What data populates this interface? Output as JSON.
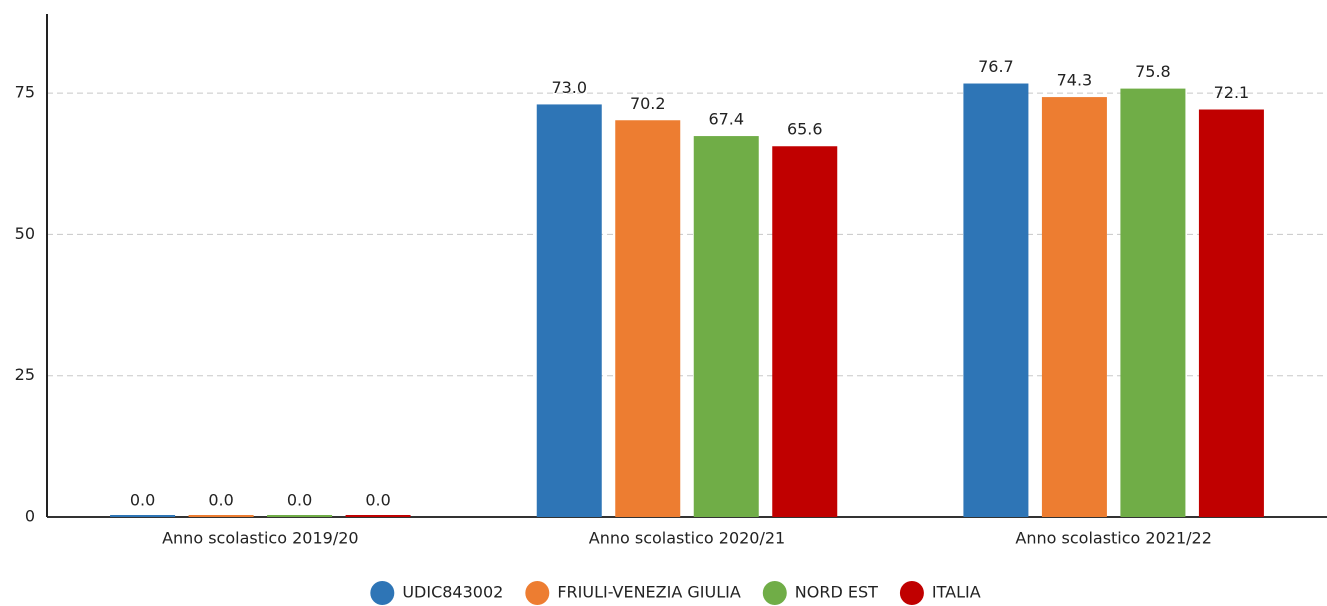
{
  "chart_data": {
    "type": "bar",
    "categories": [
      "Anno scolastico 2019/20",
      "Anno scolastico 2020/21",
      "Anno scolastico 2021/22"
    ],
    "series": [
      {
        "name": "UDIC843002",
        "color": "#2e75b6",
        "values": [
          0,
          73,
          76.7
        ],
        "value_labels": [
          "0.0",
          "73.0",
          "76.7"
        ]
      },
      {
        "name": "FRIULI-VENEZIA GIULIA",
        "color": "#ed7d31",
        "values": [
          0,
          70.2,
          74.3
        ],
        "value_labels": [
          "0.0",
          "70.2",
          "74.3"
        ]
      },
      {
        "name": "NORD EST",
        "color": "#70ad47",
        "values": [
          0,
          67.4,
          75.8
        ],
        "value_labels": [
          "0.0",
          "67.4",
          "75.8"
        ]
      },
      {
        "name": "ITALIA",
        "color": "#c00000",
        "values": [
          0,
          65.6,
          72.1
        ],
        "value_labels": [
          "0.0",
          "65.6",
          "72.1"
        ]
      }
    ],
    "ylim": [
      0,
      89
    ],
    "yticks": [
      0,
      25,
      50,
      75
    ],
    "grid": true,
    "legend": "bottom"
  }
}
